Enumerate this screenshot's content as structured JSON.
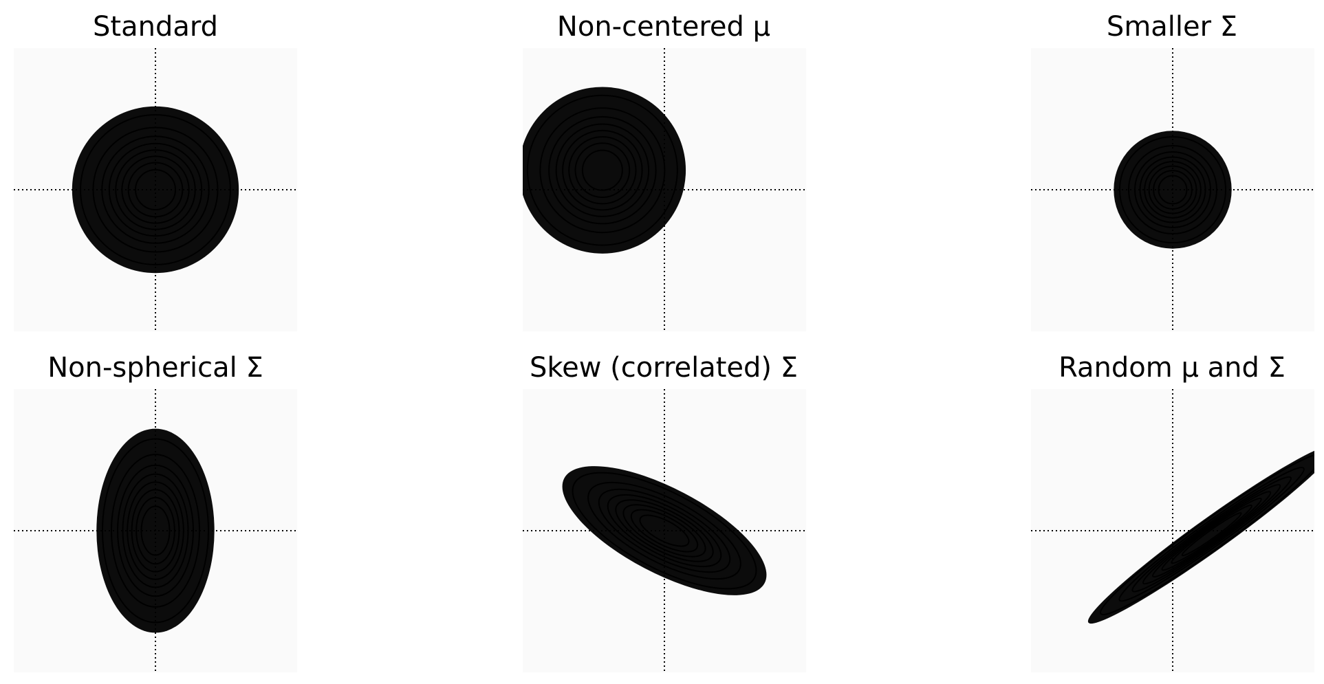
{
  "chart_data": [
    {
      "type": "contour",
      "title": "Standard",
      "xlim": [
        -4,
        4
      ],
      "ylim": [
        -4,
        4
      ],
      "axis_lines": [
        0,
        0
      ],
      "mean": [
        0,
        0
      ],
      "cov": [
        [
          1,
          0
        ],
        [
          0,
          1
        ]
      ],
      "contour_levels": 8
    },
    {
      "type": "contour",
      "title": "Non-centered μ",
      "xlim": [
        -4,
        4
      ],
      "ylim": [
        -4,
        4
      ],
      "axis_lines": [
        0,
        0
      ],
      "mean": [
        -1.75,
        0.55
      ],
      "cov": [
        [
          1,
          0
        ],
        [
          0,
          1
        ]
      ],
      "contour_levels": 8
    },
    {
      "type": "contour",
      "title": "Smaller Σ",
      "xlim": [
        -4,
        4
      ],
      "ylim": [
        -4,
        4
      ],
      "axis_lines": [
        0,
        0
      ],
      "mean": [
        0,
        0
      ],
      "cov": [
        [
          0.5,
          0
        ],
        [
          0,
          0.5
        ]
      ],
      "contour_levels": 8
    },
    {
      "type": "contour",
      "title": "Non-spherical Σ",
      "xlim": [
        -4,
        4
      ],
      "ylim": [
        -4,
        4
      ],
      "axis_lines": [
        0,
        0
      ],
      "mean": [
        0,
        0
      ],
      "cov": [
        [
          0.5,
          0
        ],
        [
          0,
          1.5
        ]
      ],
      "contour_levels": 8
    },
    {
      "type": "contour",
      "title": "Skew (correlated) Σ",
      "xlim": [
        -4,
        4
      ],
      "ylim": [
        -4,
        4
      ],
      "axis_lines": [
        0,
        0
      ],
      "mean": [
        0,
        0
      ],
      "cov": [
        [
          1.5,
          -0.65
        ],
        [
          -0.65,
          0.6
        ]
      ],
      "contour_levels": 8
    },
    {
      "type": "contour",
      "title": "Random μ and Σ",
      "xlim": [
        -4,
        4
      ],
      "ylim": [
        -4,
        4
      ],
      "axis_lines": [
        0,
        0
      ],
      "mean": [
        1.1,
        -0.1
      ],
      "cov": [
        [
          2.2,
          1.55
        ],
        [
          1.55,
          1.15
        ]
      ],
      "contour_levels": 8
    }
  ]
}
